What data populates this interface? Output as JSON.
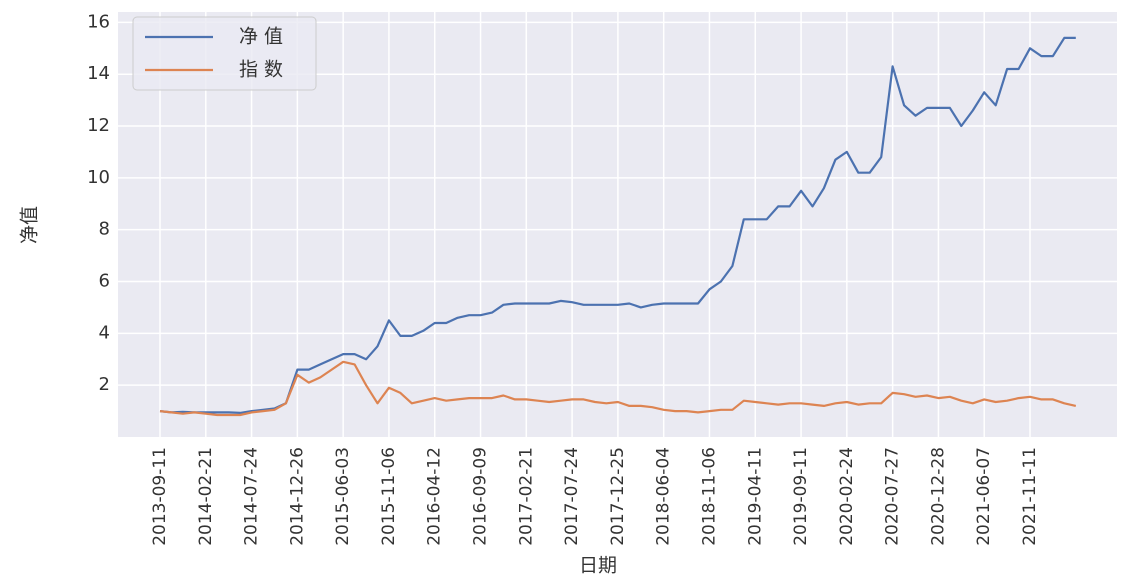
{
  "chart_data": {
    "type": "line",
    "xlabel": "日期",
    "ylabel": "净值",
    "categories": [
      "2013-09-11",
      null,
      null,
      null,
      "2014-02-21",
      null,
      null,
      null,
      "2014-07-24",
      null,
      null,
      null,
      "2014-12-26",
      null,
      null,
      null,
      "2015-06-03",
      null,
      null,
      null,
      "2015-11-06",
      null,
      null,
      null,
      "2016-04-12",
      null,
      null,
      null,
      "2016-09-09",
      null,
      null,
      null,
      "2017-02-21",
      null,
      null,
      null,
      "2017-07-24",
      null,
      null,
      null,
      "2017-12-25",
      null,
      null,
      null,
      "2018-06-04",
      null,
      null,
      null,
      "2018-11-06",
      null,
      null,
      null,
      "2019-04-11",
      null,
      null,
      null,
      "2019-09-11",
      null,
      null,
      null,
      "2020-02-24",
      null,
      null,
      null,
      "2020-07-27",
      null,
      null,
      null,
      "2020-12-28",
      null,
      null,
      null,
      "2021-06-07",
      null,
      null,
      null,
      "2021-11-11",
      null,
      null,
      null,
      null
    ],
    "series": [
      {
        "name": "净值",
        "color": "#4c72b0",
        "values": [
          1.0,
          0.95,
          0.97,
          0.95,
          0.95,
          0.95,
          0.95,
          0.93,
          1.0,
          1.05,
          1.1,
          1.3,
          2.6,
          2.6,
          2.8,
          3.0,
          3.2,
          3.2,
          3.0,
          3.5,
          4.5,
          3.9,
          3.9,
          4.1,
          4.4,
          4.4,
          4.6,
          4.7,
          4.7,
          4.8,
          5.1,
          5.15,
          5.15,
          5.15,
          5.15,
          5.25,
          5.2,
          5.1,
          5.1,
          5.1,
          5.1,
          5.15,
          5.0,
          5.1,
          5.15,
          5.15,
          5.15,
          5.15,
          5.7,
          6.0,
          6.6,
          8.4,
          8.4,
          8.4,
          8.9,
          8.9,
          9.5,
          8.9,
          9.6,
          10.7,
          11.0,
          10.2,
          10.2,
          10.8,
          14.3,
          12.8,
          12.4,
          12.7,
          12.7,
          12.7,
          12.0,
          12.6,
          13.3,
          12.8,
          14.2,
          14.2,
          15.0,
          14.7,
          14.7,
          15.4,
          15.4
        ]
      },
      {
        "name": "指数",
        "color": "#dd8452",
        "values": [
          1.0,
          0.95,
          0.9,
          0.95,
          0.9,
          0.85,
          0.85,
          0.85,
          0.95,
          1.0,
          1.05,
          1.3,
          2.4,
          2.1,
          2.3,
          2.6,
          2.9,
          2.8,
          2.0,
          1.3,
          1.9,
          1.7,
          1.3,
          1.4,
          1.5,
          1.4,
          1.45,
          1.5,
          1.5,
          1.5,
          1.6,
          1.45,
          1.45,
          1.4,
          1.35,
          1.4,
          1.45,
          1.45,
          1.35,
          1.3,
          1.35,
          1.2,
          1.2,
          1.15,
          1.05,
          1.0,
          1.0,
          0.95,
          1.0,
          1.05,
          1.05,
          1.4,
          1.35,
          1.3,
          1.25,
          1.3,
          1.3,
          1.25,
          1.2,
          1.3,
          1.35,
          1.25,
          1.3,
          1.3,
          1.7,
          1.65,
          1.55,
          1.6,
          1.5,
          1.55,
          1.4,
          1.3,
          1.45,
          1.35,
          1.4,
          1.5,
          1.55,
          1.45,
          1.45,
          1.3,
          1.2
        ]
      }
    ],
    "ylim": [
      0,
      16.4
    ],
    "yticks": [
      2,
      4,
      6,
      8,
      10,
      12,
      14,
      16
    ],
    "grid": true,
    "legend": "upper left"
  }
}
